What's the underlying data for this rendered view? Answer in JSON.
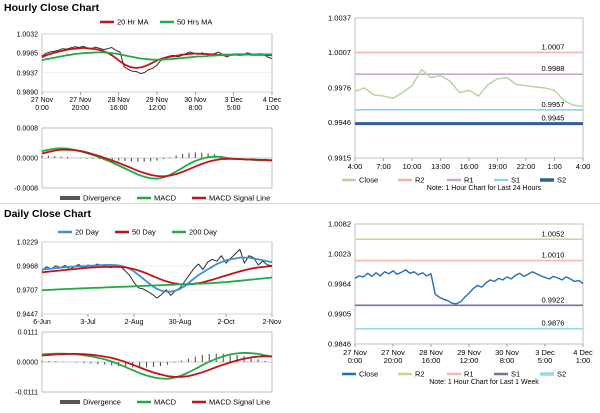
{
  "sections": {
    "hourly_title": "Hourly Close Chart",
    "daily_title": "Daily Close Chart"
  },
  "colors": {
    "price": "#2f2f2f",
    "ma_red": "#c0141c",
    "ma_green": "#24a84a",
    "ma_blue": "#3d8fd1",
    "close_light": "#b5d29a",
    "close_dark": "#1f6fb4",
    "r2": "#f2b6a8",
    "r1": "#c9a8d6",
    "s1": "#8fd2e8",
    "s2": "#2f5f99",
    "daily_r2": "#c3d98f",
    "daily_r1": "#f4b9a9",
    "daily_s1": "#7d6fa0",
    "daily_s2": "#9bd7e8",
    "hist": "#555555"
  },
  "chart_data": [
    {
      "id": "hourly-price",
      "type": "line",
      "title": "",
      "ylim": [
        0.989,
        1.0032
      ],
      "yticks": [
        "1.0032",
        "0.9985",
        "0.9937",
        "0.9890"
      ],
      "ytick_values": [
        1.0032,
        0.9985,
        0.9937,
        0.989
      ],
      "xticks": [
        "27 Nov\n0:00",
        "27 Nov\n20:00",
        "28 Nov\n16:00",
        "29 Nov\n12:00",
        "30 Nov\n8:00",
        "3 Dec\n5:00",
        "4 Dec\n1:00"
      ],
      "legend": [
        "20 Hr MA",
        "50 Hrs MA"
      ],
      "series": [
        {
          "name": "Close",
          "values": [
            0.9978,
            0.9985,
            0.9988,
            0.999,
            0.9992,
            0.9996,
            0.9995,
            0.9998,
            1.0001,
            0.9999,
            1.0002,
            0.9998,
            0.9996,
            1.0,
            0.9997,
            0.9994,
            0.9996,
            0.9999,
            0.9992,
            0.9988,
            0.9952,
            0.9945,
            0.9941,
            0.994,
            0.9935,
            0.9938,
            0.9945,
            0.9948,
            0.9956,
            0.9968,
            0.9975,
            0.9978,
            0.998,
            0.9976,
            0.9979,
            0.9984,
            0.9988,
            0.9985,
            0.9982,
            0.9986,
            0.9982,
            0.9979,
            0.9984,
            0.9988,
            0.9981,
            0.9976,
            0.998,
            0.9983,
            0.9979,
            0.9981,
            0.9986,
            0.9983,
            0.9981,
            0.9984,
            0.9982,
            0.9975,
            0.9972
          ]
        },
        {
          "name": "20 Hr MA",
          "values": [
            0.9975,
            0.998,
            0.9983,
            0.9986,
            0.9989,
            0.9991,
            0.9993,
            0.9995,
            0.9996,
            0.9997,
            0.9998,
            0.9997,
            0.9996,
            0.9995,
            0.9993,
            0.999,
            0.9986,
            0.998,
            0.9973,
            0.9965,
            0.9958,
            0.9953,
            0.995,
            0.9949,
            0.995,
            0.9953,
            0.9957,
            0.9962,
            0.9967,
            0.9971,
            0.9974,
            0.9976,
            0.9978,
            0.9979,
            0.9981,
            0.9982,
            0.9983,
            0.9984,
            0.9984,
            0.9983,
            0.9983,
            0.9982,
            0.9982,
            0.9981,
            0.9981,
            0.9981,
            0.9981,
            0.9982,
            0.9982,
            0.9982,
            0.9982,
            0.9981,
            0.9981,
            0.9981,
            0.9981,
            0.998,
            0.998
          ]
        },
        {
          "name": "50 Hrs MA",
          "values": [
            0.9968,
            0.997,
            0.9972,
            0.9974,
            0.9976,
            0.9978,
            0.998,
            0.9981,
            0.9983,
            0.9984,
            0.9985,
            0.9986,
            0.9986,
            0.9987,
            0.9987,
            0.9987,
            0.9986,
            0.9985,
            0.9984,
            0.9982,
            0.998,
            0.9978,
            0.9976,
            0.9974,
            0.9972,
            0.9971,
            0.997,
            0.9969,
            0.9969,
            0.9969,
            0.997,
            0.997,
            0.9971,
            0.9972,
            0.9973,
            0.9974,
            0.9975,
            0.9976,
            0.9977,
            0.9977,
            0.9978,
            0.9979,
            0.9979,
            0.998,
            0.998,
            0.998,
            0.9981,
            0.9981,
            0.9981,
            0.9981,
            0.9982,
            0.9982,
            0.9982,
            0.9982,
            0.9982,
            0.9982,
            0.9982
          ]
        }
      ]
    },
    {
      "id": "hourly-macd",
      "type": "line",
      "ylim": [
        -0.0008,
        0.0008
      ],
      "yticks": [
        "0.0008",
        "0.0000",
        "-0.0008"
      ],
      "ytick_values": [
        0.0008,
        0.0,
        -0.0008
      ],
      "legend": [
        "Divergence",
        "MACD",
        "MACD Signal Line"
      ],
      "series": [
        {
          "name": "MACD",
          "values": [
            0.00018,
            0.00022,
            0.00025,
            0.00026,
            0.00025,
            0.00022,
            0.00018,
            0.00013,
            8e-05,
            2e-05,
            -5e-05,
            -0.00012,
            -0.0002,
            -0.00028,
            -0.00036,
            -0.00044,
            -0.0005,
            -0.00054,
            -0.00055,
            -0.00052,
            -0.00045,
            -0.00036,
            -0.00026,
            -0.00016,
            -8e-05,
            -2e-05,
            2e-05,
            4e-05,
            3e-05,
            0.0,
            -2e-05,
            -3e-05,
            -4e-05,
            -5e-05,
            -6e-05,
            -6e-05,
            -7e-05
          ]
        },
        {
          "name": "MACD Signal Line",
          "values": [
            0.00012,
            0.00016,
            0.0002,
            0.00022,
            0.00022,
            0.00021,
            0.00019,
            0.00015,
            0.0001,
            5e-05,
            -1e-05,
            -7e-05,
            -0.00013,
            -0.0002,
            -0.00027,
            -0.00034,
            -0.0004,
            -0.00045,
            -0.00048,
            -0.00049,
            -0.00047,
            -0.00043,
            -0.00037,
            -0.0003,
            -0.00023,
            -0.00016,
            -0.0001,
            -6e-05,
            -3e-05,
            -2e-05,
            -2e-05,
            -3e-05,
            -4e-05,
            -4e-05,
            -5e-05,
            -5e-05,
            -6e-05
          ]
        },
        {
          "name": "Divergence",
          "values": [
            6e-05,
            6e-05,
            5e-05,
            4e-05,
            3e-05,
            1e-05,
            -1e-05,
            -2e-05,
            -2e-05,
            -3e-05,
            -4e-05,
            -5e-05,
            -7e-05,
            -8e-05,
            -9e-05,
            -0.0001,
            -0.0001,
            -9e-05,
            -7e-05,
            -3e-05,
            2e-05,
            7e-05,
            0.00011,
            0.00014,
            0.00015,
            0.00014,
            0.00012,
            0.0001,
            6e-05,
            2e-05,
            0.0,
            0.0,
            0.0,
            -1e-05,
            -1e-05,
            -1e-05,
            -1e-05
          ]
        }
      ]
    },
    {
      "id": "hourly-levels",
      "type": "line",
      "ylim": [
        0.9915,
        1.0037
      ],
      "yticks": [
        "1.0037",
        "1.0007",
        "0.9976",
        "0.9946",
        "0.9915"
      ],
      "ytick_values": [
        1.0037,
        1.0007,
        0.9976,
        0.9946,
        0.9915
      ],
      "xticks": [
        "4:00",
        "7:00",
        "10:00",
        "13:00",
        "16:00",
        "19:00",
        "22:00",
        "1:00",
        "4:00"
      ],
      "legend": [
        "Close",
        "R2",
        "R1",
        "S1",
        "S2"
      ],
      "note": "Note: 1 Hour Chart for Last 24 Hours",
      "levels": [
        {
          "name": "R2",
          "value": 1.0007,
          "label": "1.0007"
        },
        {
          "name": "R1",
          "value": 0.9988,
          "label": "0.9988"
        },
        {
          "name": "S1",
          "value": 0.9957,
          "label": "0.9957"
        },
        {
          "name": "S2",
          "value": 0.9945,
          "label": "0.9945"
        }
      ],
      "series": [
        {
          "name": "Close",
          "values": [
            0.9973,
            0.9976,
            0.997,
            0.9969,
            0.9967,
            0.9972,
            0.9978,
            0.9992,
            0.9985,
            0.9987,
            0.9982,
            0.9972,
            0.9974,
            0.9969,
            0.9979,
            0.9984,
            0.9985,
            0.9979,
            0.9978,
            0.9977,
            0.9976,
            0.9974,
            0.9965,
            0.9961,
            0.996
          ]
        }
      ]
    },
    {
      "id": "daily-price",
      "type": "line",
      "ylim": [
        0.9447,
        1.0229
      ],
      "yticks": [
        "1.0229",
        "0.9968",
        "0.9707",
        "0.9447"
      ],
      "ytick_values": [
        1.0229,
        0.9968,
        0.9707,
        0.9447
      ],
      "xticks": [
        "6-Jun",
        "3-Jul",
        "2-Aug",
        "30-Aug",
        "2-Oct",
        "2-Nov"
      ],
      "legend": [
        "20 Day",
        "50 Day",
        "200 Day"
      ],
      "series": [
        {
          "name": "Close",
          "values": [
            0.992,
            0.996,
            0.9935,
            0.997,
            0.995,
            0.9975,
            0.993,
            0.996,
            0.9985,
            0.9945,
            0.998,
            0.996,
            0.999,
            0.997,
            0.9965,
            0.995,
            0.997,
            0.9965,
            0.992,
            0.987,
            0.979,
            0.973,
            0.972,
            0.969,
            0.966,
            0.962,
            0.966,
            0.971,
            0.965,
            0.97,
            0.973,
            0.98,
            0.987,
            0.994,
            0.999,
            0.993,
            1.001,
            1.004,
            1.002,
            1.008,
            1.0,
            1.005,
            1.01,
            1.015,
            1.0,
            1.008,
            1.006,
            0.998,
            1.002,
            0.998,
            0.997
          ]
        },
        {
          "name": "20 Day",
          "values": [
            0.993,
            0.9935,
            0.994,
            0.9945,
            0.995,
            0.9955,
            0.996,
            0.9962,
            0.9964,
            0.9966,
            0.997,
            0.9973,
            0.9975,
            0.9978,
            0.998,
            0.998,
            0.9978,
            0.9972,
            0.996,
            0.994,
            0.991,
            0.987,
            0.983,
            0.979,
            0.975,
            0.972,
            0.97,
            0.969,
            0.969,
            0.97,
            0.972,
            0.975,
            0.979,
            0.983,
            0.987,
            0.99,
            0.993,
            0.996,
            0.999,
            1.001,
            1.003,
            1.004,
            1.005,
            1.006,
            1.006,
            1.006,
            1.005,
            1.004,
            1.003,
            1.002,
            1.001
          ]
        },
        {
          "name": "50 Day",
          "values": [
            0.99,
            0.9905,
            0.991,
            0.9915,
            0.992,
            0.9925,
            0.993,
            0.9935,
            0.994,
            0.9945,
            0.995,
            0.9952,
            0.9955,
            0.9958,
            0.996,
            0.996,
            0.996,
            0.9958,
            0.9954,
            0.9946,
            0.9935,
            0.992,
            0.9902,
            0.9882,
            0.986,
            0.984,
            0.982,
            0.9802,
            0.9788,
            0.9778,
            0.9772,
            0.977,
            0.977,
            0.9775,
            0.9782,
            0.9792,
            0.9805,
            0.982,
            0.9835,
            0.985,
            0.9865,
            0.988,
            0.9895,
            0.991,
            0.9922,
            0.9935,
            0.9945,
            0.9952,
            0.9958,
            0.9963,
            0.9968
          ]
        },
        {
          "name": "200 Day",
          "values": [
            0.9705,
            0.9708,
            0.971,
            0.9713,
            0.9715,
            0.9718,
            0.972,
            0.9722,
            0.9724,
            0.9726,
            0.9728,
            0.973,
            0.9732,
            0.9734,
            0.9736,
            0.9738,
            0.974,
            0.9742,
            0.9744,
            0.9746,
            0.9748,
            0.975,
            0.9752,
            0.9754,
            0.9756,
            0.9758,
            0.976,
            0.9762,
            0.9764,
            0.9766,
            0.9768,
            0.977,
            0.9772,
            0.9774,
            0.9776,
            0.9778,
            0.978,
            0.9783,
            0.9786,
            0.979,
            0.9794,
            0.9798,
            0.9803,
            0.9808,
            0.9813,
            0.9818,
            0.9823,
            0.9828,
            0.9833,
            0.9838,
            0.9843
          ]
        }
      ]
    },
    {
      "id": "daily-macd",
      "type": "line",
      "ylim": [
        -0.0111,
        0.0111
      ],
      "yticks": [
        "0.0111",
        "0.0000",
        "-0.0111"
      ],
      "ytick_values": [
        0.0111,
        0.0,
        -0.0111
      ],
      "legend": [
        "Divergence",
        "MACD",
        "MACD Signal Line"
      ],
      "series": [
        {
          "name": "MACD",
          "values": [
            0.0028,
            0.003,
            0.0031,
            0.0031,
            0.003,
            0.0028,
            0.0025,
            0.0021,
            0.0016,
            0.001,
            0.0002,
            -0.0008,
            -0.0019,
            -0.003,
            -0.0041,
            -0.005,
            -0.0057,
            -0.0061,
            -0.0062,
            -0.0058,
            -0.005,
            -0.0039,
            -0.0026,
            -0.0012,
            0.0001,
            0.0012,
            0.0021,
            0.0028,
            0.0032,
            0.0034,
            0.0033,
            0.003,
            0.0025,
            0.002
          ]
        },
        {
          "name": "MACD Signal Line",
          "values": [
            0.0024,
            0.0026,
            0.0028,
            0.0029,
            0.003,
            0.003,
            0.0029,
            0.0027,
            0.0024,
            0.002,
            0.0015,
            0.0008,
            0.0,
            -0.001,
            -0.002,
            -0.003,
            -0.0039,
            -0.0046,
            -0.0052,
            -0.0055,
            -0.0055,
            -0.0052,
            -0.0046,
            -0.0038,
            -0.0029,
            -0.0019,
            -0.001,
            -0.0002,
            0.0006,
            0.0012,
            0.0017,
            0.002,
            0.0021,
            0.0021
          ]
        },
        {
          "name": "Divergence",
          "values": [
            0.0004,
            0.0004,
            0.0003,
            0.0002,
            0.0,
            -0.0002,
            -0.0004,
            -0.0006,
            -0.0008,
            -0.001,
            -0.0013,
            -0.0016,
            -0.0019,
            -0.002,
            -0.0021,
            -0.002,
            -0.0018,
            -0.0015,
            -0.001,
            -0.0003,
            0.0005,
            0.0013,
            0.002,
            0.0026,
            0.003,
            0.0031,
            0.0031,
            0.003,
            0.0026,
            0.0022,
            0.0016,
            0.001,
            0.0004,
            -0.0001
          ]
        }
      ]
    },
    {
      "id": "daily-levels",
      "type": "line",
      "ylim": [
        0.9846,
        1.0082
      ],
      "yticks": [
        "1.0082",
        "1.0023",
        "0.9964",
        "0.9905",
        "0.9846"
      ],
      "ytick_values": [
        1.0082,
        1.0023,
        0.9964,
        0.9905,
        0.9846
      ],
      "xticks": [
        "27 Nov\n0:00",
        "27 Nov\n20:00",
        "28 Nov\n16:00",
        "29 Nov\n12:00",
        "30 Nov\n8:00",
        "3 Dec\n5:00",
        "4 Dec\n1:00"
      ],
      "legend": [
        "Close",
        "R2",
        "R1",
        "S1",
        "S2"
      ],
      "note": "Note: 1 Hour Chart for Last 1 Week",
      "levels": [
        {
          "name": "R2",
          "value": 1.0052,
          "label": "1.0052"
        },
        {
          "name": "R1",
          "value": 1.001,
          "label": "1.0010"
        },
        {
          "name": "S1",
          "value": 0.9922,
          "label": "0.9922"
        },
        {
          "name": "S2",
          "value": 0.9876,
          "label": "0.9876"
        }
      ],
      "series": [
        {
          "name": "Close",
          "values": [
            0.9975,
            0.998,
            0.9978,
            0.9985,
            0.9979,
            0.9986,
            0.998,
            0.9988,
            0.9984,
            0.999,
            0.9983,
            0.9987,
            0.9992,
            0.9985,
            0.9988,
            0.9982,
            0.9986,
            0.998,
            0.9984,
            0.9944,
            0.9938,
            0.9934,
            0.9931,
            0.9926,
            0.9925,
            0.9929,
            0.9938,
            0.9946,
            0.9955,
            0.9961,
            0.9958,
            0.9966,
            0.9972,
            0.9969,
            0.9975,
            0.9972,
            0.9978,
            0.9974,
            0.9981,
            0.9985,
            0.9979,
            0.9983,
            0.9988,
            0.9984,
            0.998,
            0.9977,
            0.9974,
            0.9979,
            0.9976,
            0.9972,
            0.9978,
            0.9974,
            0.9969,
            0.9971,
            0.9965
          ]
        }
      ]
    }
  ]
}
